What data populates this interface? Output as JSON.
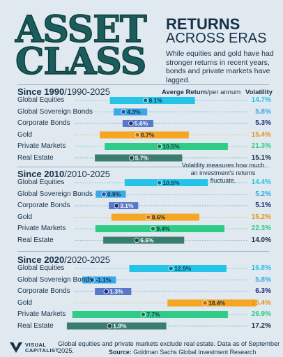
{
  "title": {
    "big_line1": "ASSET",
    "big_line2": "CLASS",
    "line1": "RETURNS",
    "line2": "ACROSS ERAS"
  },
  "subtitle": "While equities and gold have had stronger returns in recent years, bonds and private markets have lagged.",
  "column_headers": {
    "return_bold": "Averge Return",
    "return_rest": "/per annum",
    "volatility": "Volatility"
  },
  "volatility_note": "Volatility measures how much an investment's returns fluctuate.",
  "footer": {
    "note": "Global equities and private markets exclude real estate. Data as of September 2025.",
    "source_label": "Source:",
    "source": "Goldman Sachs Global Investment Research"
  },
  "logo": {
    "line1": "VISUAL",
    "line2": "CAPITALIST"
  },
  "chart_data": {
    "type": "bar",
    "subtype": "floating range bars with average-return markers",
    "categories": [
      "Global Equities",
      "Global Sovereign Bonds",
      "Corporate Bonds",
      "Gold",
      "Private Markets",
      "Real Estate"
    ],
    "colors": [
      "#23c4e8",
      "#3aa7e6",
      "#5a78c8",
      "#f5a623",
      "#2ecc86",
      "#3a7c6e"
    ],
    "x_range": [
      -5,
      29
    ],
    "eras": [
      {
        "bold": "Since 1990",
        "range": "/1990-2025",
        "returns": [
          8.1,
          4.3,
          5.6,
          6.7,
          10.5,
          5.7
        ],
        "return_labels": [
          "8.1%",
          "4.3%",
          "5.6%",
          "6.7%",
          "10.5%",
          "5.7%"
        ],
        "volatility": [
          14.7,
          5.8,
          5.3,
          15.4,
          21.3,
          15.1
        ],
        "volatility_labels": [
          "14.7%",
          "5.8%",
          "5.3%",
          "15.4%",
          "21.3%",
          "15.1%"
        ]
      },
      {
        "bold": "Since 2010",
        "range": "/2010-2025",
        "returns": [
          10.5,
          0.9,
          3.1,
          8.6,
          9.4,
          6.6
        ],
        "return_labels": [
          "10.5%",
          "0.9%",
          "3.1%",
          "8.6%",
          "9.4%",
          "6.6%"
        ],
        "volatility": [
          14.4,
          5.2,
          5.1,
          15.2,
          22.3,
          14.0
        ],
        "volatility_labels": [
          "14.4%",
          "5.2%",
          "5.1%",
          "15.2%",
          "22.3%",
          "14.0%"
        ]
      },
      {
        "bold": "Since 2020",
        "range": "/2020-2025",
        "returns": [
          12.5,
          -1.1,
          1.3,
          18.4,
          7.7,
          1.9
        ],
        "return_labels": [
          "12.5%",
          "-1.1%",
          "1.3%",
          "18.4%",
          "7.7%",
          "1.9%"
        ],
        "volatility": [
          16.8,
          5.8,
          6.3,
          15.4,
          26.9,
          17.2
        ],
        "volatility_labels": [
          "16.8%",
          "5.8%",
          "6.3%",
          "15.4%",
          "26.9%",
          "17.2%"
        ]
      }
    ]
  }
}
